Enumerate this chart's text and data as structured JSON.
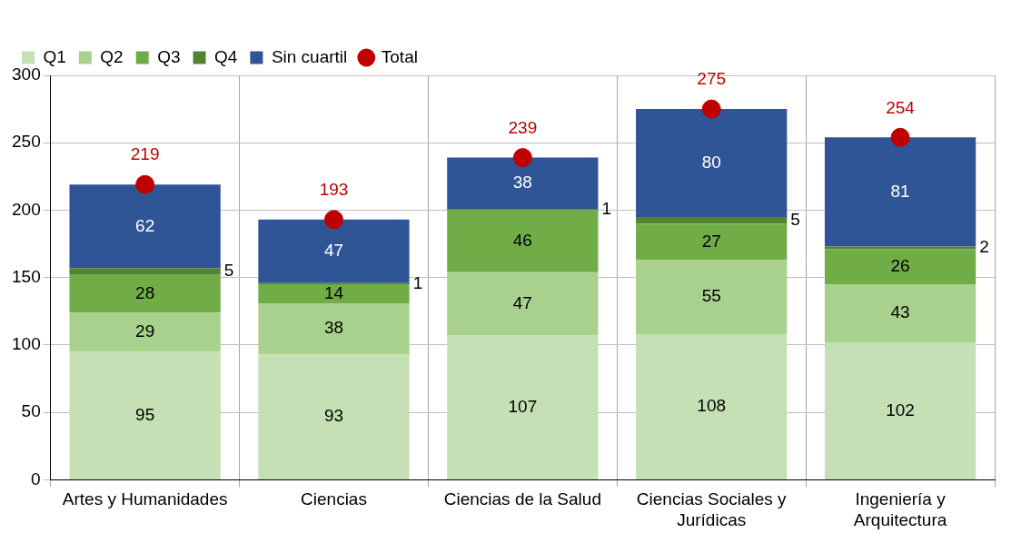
{
  "chart_data": {
    "type": "bar",
    "stacked": true,
    "categories": [
      "Artes y Humanidades",
      "Ciencias",
      "Ciencias de la Salud",
      "Ciencias Sociales y Jurídicas",
      "Ingeniería y Arquitectura"
    ],
    "series": [
      {
        "name": "Q1",
        "color": "#c5e0b4",
        "values": [
          95,
          93,
          107,
          108,
          102
        ]
      },
      {
        "name": "Q2",
        "color": "#a9d18e",
        "values": [
          29,
          38,
          47,
          55,
          43
        ]
      },
      {
        "name": "Q3",
        "color": "#70ad47",
        "values": [
          28,
          14,
          46,
          27,
          26
        ]
      },
      {
        "name": "Q4",
        "color": "#548235",
        "values": [
          5,
          1,
          1,
          5,
          2
        ]
      },
      {
        "name": "Sin cuartil",
        "color": "#2f5597",
        "values": [
          62,
          47,
          38,
          80,
          81
        ]
      },
      {
        "name": "Total",
        "type": "scatter",
        "color": "#c00000",
        "x": [
          "Artes y Humanidades",
          "Ciencias",
          "Ciencias de la Salud",
          "Ciencias Sociales y Jurídicas",
          "Ingeniería y Arquitectura"
        ],
        "values": [
          219,
          193,
          239,
          275,
          254
        ]
      }
    ],
    "ylim": [
      0,
      300
    ],
    "yticks": [
      0,
      50,
      100,
      150,
      200,
      250,
      300
    ],
    "grid": true,
    "legend": "top left",
    "marker": "circle",
    "data_labels": true
  }
}
